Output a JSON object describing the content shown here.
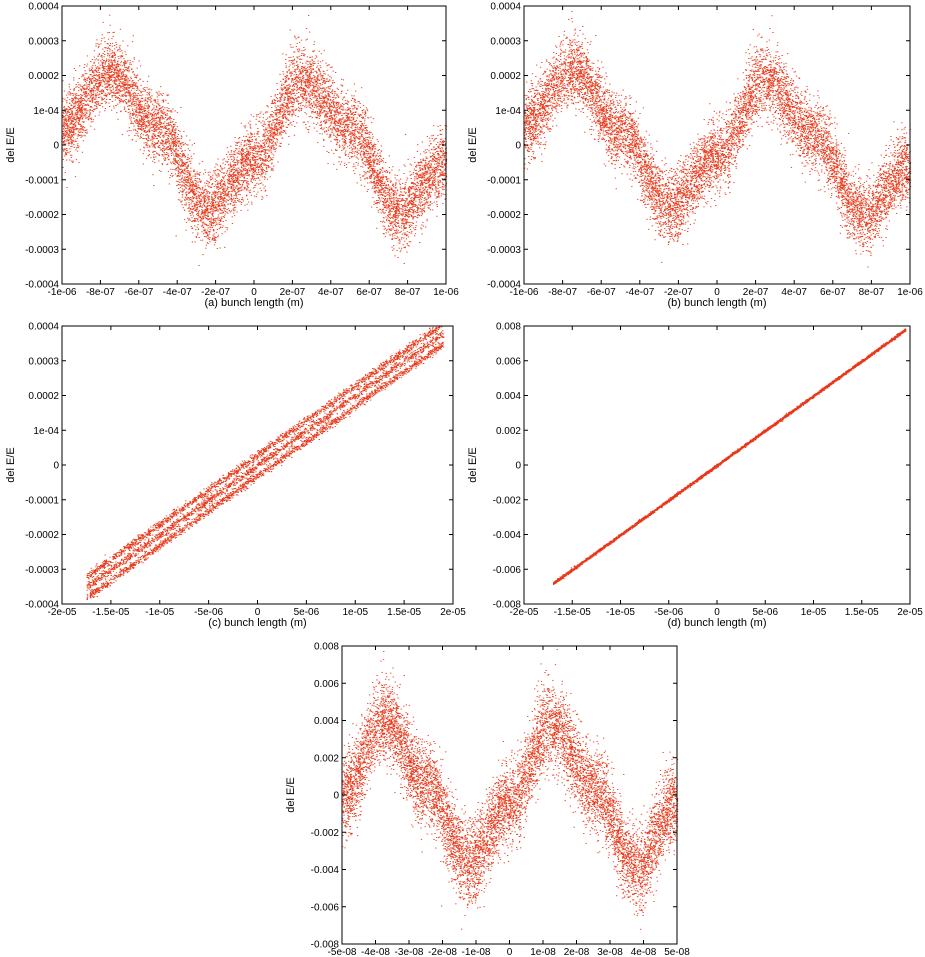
{
  "figure": {
    "marker_color": "#e8391a"
  },
  "chart_data": [
    {
      "id": "a",
      "type": "scatter",
      "caption": "(a)  bunch length (m)",
      "xlabel": "",
      "ylabel": "del E/E",
      "xlim": [
        -1e-06,
        1e-06
      ],
      "ylim": [
        -0.0004,
        0.0004
      ],
      "xticks": [
        -1e-06,
        -8e-07,
        -6e-07,
        -4e-07,
        -2e-07,
        0,
        2e-07,
        4e-07,
        6e-07,
        8e-07,
        1e-06
      ],
      "xtick_labels": [
        "-1e-06",
        "-8e-07",
        "-6e-07",
        "-4e-07",
        "-2e-07",
        "0",
        "2e-07",
        "4e-07",
        "6e-07",
        "8e-07",
        "1e-06"
      ],
      "yticks": [
        -0.0004,
        -0.0003,
        -0.0002,
        -0.0001,
        0,
        0.0001,
        0.0002,
        0.0003,
        0.0004
      ],
      "ytick_labels": [
        "-0.0004",
        "-0.0003",
        "-0.0002",
        "-0.0001",
        "0",
        "1e-04",
        "0.0002",
        "0.0003",
        "0.0004"
      ],
      "grid": false,
      "legend": "none",
      "distribution": {
        "shape": "sinusoidal band",
        "x_range": [
          -1e-06,
          1e-06
        ],
        "y_center": [
          [
            -1e-06,
            5e-05
          ],
          [
            -7.5e-07,
            0.00021
          ],
          [
            -5e-07,
            5e-05
          ],
          [
            -2.5e-07,
            -0.00019
          ],
          [
            0,
            -4e-05
          ],
          [
            2.5e-07,
            0.00019
          ],
          [
            5e-07,
            5e-05
          ],
          [
            7.5e-07,
            -0.00019
          ],
          [
            1e-06,
            -5e-05
          ]
        ],
        "y_spread": 5e-05,
        "approx_points": 9000
      }
    },
    {
      "id": "b",
      "type": "scatter",
      "caption": "(b)  bunch length (m)",
      "xlabel": "",
      "ylabel": "del E/E",
      "xlim": [
        -1e-06,
        1e-06
      ],
      "ylim": [
        -0.0004,
        0.0004
      ],
      "xticks": [
        -1e-06,
        -8e-07,
        -6e-07,
        -4e-07,
        -2e-07,
        0,
        2e-07,
        4e-07,
        6e-07,
        8e-07,
        1e-06
      ],
      "xtick_labels": [
        "-1e-06",
        "-8e-07",
        "-6e-07",
        "-4e-07",
        "-2e-07",
        "0",
        "2e-07",
        "4e-07",
        "6e-07",
        "8e-07",
        "1e-06"
      ],
      "yticks": [
        -0.0004,
        -0.0003,
        -0.0002,
        -0.0001,
        0,
        0.0001,
        0.0002,
        0.0003,
        0.0004
      ],
      "ytick_labels": [
        "-0.0004",
        "-0.0003",
        "-0.0002",
        "-0.0001",
        "0",
        "1e-04",
        "0.0002",
        "0.0003",
        "0.0004"
      ],
      "grid": false,
      "legend": "none",
      "distribution": {
        "shape": "sinusoidal band",
        "x_range": [
          -1e-06,
          1e-06
        ],
        "y_center": [
          [
            -1e-06,
            6e-05
          ],
          [
            -7.5e-07,
            0.00022
          ],
          [
            -5e-07,
            4e-05
          ],
          [
            -2.5e-07,
            -0.00018
          ],
          [
            0,
            -3e-05
          ],
          [
            2.5e-07,
            0.00019
          ],
          [
            5e-07,
            3e-05
          ],
          [
            7.5e-07,
            -0.0002
          ],
          [
            1e-06,
            -6e-05
          ]
        ],
        "y_spread": 5e-05,
        "approx_points": 9000
      }
    },
    {
      "id": "c",
      "type": "scatter",
      "caption": "(c)  bunch length (m)",
      "xlabel": "",
      "ylabel": "del E/E",
      "xlim": [
        -2e-05,
        2e-05
      ],
      "ylim": [
        -0.0004,
        0.0004
      ],
      "xticks": [
        -2e-05,
        -1.5e-05,
        -1e-05,
        -5e-06,
        0,
        5e-06,
        1e-05,
        1.5e-05,
        2e-05
      ],
      "xtick_labels": [
        "-2e-05",
        "-1.5e-05",
        "-1e-05",
        "-5e-06",
        "0",
        "5e-06",
        "1e-05",
        "1.5e-05",
        "2e-05"
      ],
      "yticks": [
        -0.0004,
        -0.0003,
        -0.0002,
        -0.0001,
        0,
        0.0001,
        0.0002,
        0.0003,
        0.0004
      ],
      "ytick_labels": [
        "-0.0004",
        "-0.0003",
        "-0.0002",
        "-0.0001",
        "0",
        "1e-04",
        "0.0002",
        "0.0003",
        "0.0004"
      ],
      "grid": false,
      "legend": "none",
      "distribution": {
        "shape": "linear bands",
        "x_range": [
          -1.75e-05,
          1.9e-05
        ],
        "slope": 20,
        "band_offsets": [
          -3e-05,
          0.0,
          3e-05
        ],
        "y_spread": 6e-06,
        "approx_points": 6000
      }
    },
    {
      "id": "d",
      "type": "scatter",
      "caption": "(d)  bunch length (m)",
      "xlabel": "",
      "ylabel": "del E/E",
      "xlim": [
        -2e-05,
        2e-05
      ],
      "ylim": [
        -0.008,
        0.008
      ],
      "xticks": [
        -2e-05,
        -1.5e-05,
        -1e-05,
        -5e-06,
        0,
        5e-06,
        1e-05,
        1.5e-05,
        2e-05
      ],
      "xtick_labels": [
        "-2e-05",
        "-1.5e-05",
        "-1e-05",
        "-5e-06",
        "0",
        "5e-06",
        "1e-05",
        "1.5e-05",
        "2e-05"
      ],
      "yticks": [
        -0.008,
        -0.006,
        -0.004,
        -0.002,
        0,
        0.002,
        0.004,
        0.006,
        0.008
      ],
      "ytick_labels": [
        "-0.008",
        "-0.006",
        "-0.004",
        "-0.002",
        "0",
        "0.002",
        "0.004",
        "0.006",
        "0.008"
      ],
      "grid": false,
      "legend": "none",
      "distribution": {
        "shape": "linear bands",
        "x_range": [
          -1.7e-05,
          1.95e-05
        ],
        "slope": 400,
        "band_offsets": [
          0.0
        ],
        "y_spread": 4e-05,
        "approx_points": 5000
      }
    },
    {
      "id": "e",
      "type": "scatter",
      "caption": "(e) bunch length (m)",
      "xlabel": "",
      "ylabel": "del E/E",
      "xlim": [
        -5e-08,
        5e-08
      ],
      "ylim": [
        -0.008,
        0.008
      ],
      "xticks": [
        -5e-08,
        -4e-08,
        -3e-08,
        -2e-08,
        -1e-08,
        0,
        1e-08,
        2e-08,
        3e-08,
        4e-08,
        5e-08
      ],
      "xtick_labels": [
        "-5e-08",
        "-4e-08",
        "-3e-08",
        "-2e-08",
        "-1e-08",
        "0",
        "1e-08",
        "2e-08",
        "3e-08",
        "4e-08",
        "5e-08"
      ],
      "yticks": [
        -0.008,
        -0.006,
        -0.004,
        -0.002,
        0,
        0.002,
        0.004,
        0.006,
        0.008
      ],
      "ytick_labels": [
        "-0.008",
        "-0.006",
        "-0.004",
        "-0.002",
        "0",
        "0.002",
        "0.004",
        "0.006",
        "0.008"
      ],
      "grid": false,
      "legend": "none",
      "distribution": {
        "shape": "sinusoidal band",
        "x_range": [
          -5e-08,
          5e-08
        ],
        "y_center": [
          [
            -5e-08,
            0.0
          ],
          [
            -3.75e-08,
            0.0041
          ],
          [
            -2.5e-08,
            0.0006
          ],
          [
            -1.25e-08,
            -0.0037
          ],
          [
            0,
            -0.0004
          ],
          [
            1.25e-08,
            0.0038
          ],
          [
            2.5e-08,
            0.0004
          ],
          [
            3.75e-08,
            -0.0039
          ],
          [
            5e-08,
            -0.0004
          ]
        ],
        "y_spread": 0.0011,
        "approx_points": 9000
      }
    }
  ]
}
